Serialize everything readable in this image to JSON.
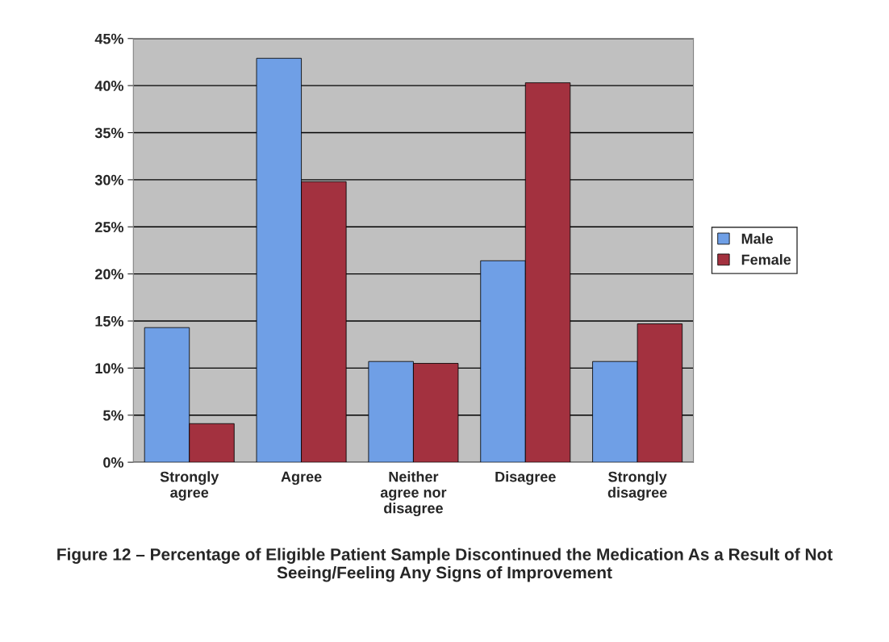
{
  "chart_data": {
    "type": "bar",
    "title": "Figure 12 – Percentage of Eligible Patient Sample Discontinued the Medication As a Result of Not Seeing/Feeling Any Signs of Improvement",
    "categories": [
      "Strongly\nagree",
      "Agree",
      "Neither\nagree nor\ndisagree",
      "Disagree",
      "Strongly\ndisagree"
    ],
    "series": [
      {
        "name": "Male",
        "color": "#6f9fe6",
        "values": [
          14.3,
          42.9,
          10.7,
          21.4,
          10.7
        ]
      },
      {
        "name": "Female",
        "color": "#a3313f",
        "values": [
          4.1,
          29.8,
          10.5,
          40.3,
          14.7
        ]
      }
    ],
    "ylim": [
      0,
      45
    ],
    "yticks": [
      {
        "value": 0,
        "label": "0%"
      },
      {
        "value": 5,
        "label": "5%"
      },
      {
        "value": 10,
        "label": "10%"
      },
      {
        "value": 15,
        "label": "15%"
      },
      {
        "value": 20,
        "label": "20%"
      },
      {
        "value": 25,
        "label": "25%"
      },
      {
        "value": 30,
        "label": "30%"
      },
      {
        "value": 35,
        "label": "35%"
      },
      {
        "value": 40,
        "label": "40%"
      },
      {
        "value": 45,
        "label": "45%"
      }
    ],
    "grid": "y",
    "legend": "right"
  }
}
